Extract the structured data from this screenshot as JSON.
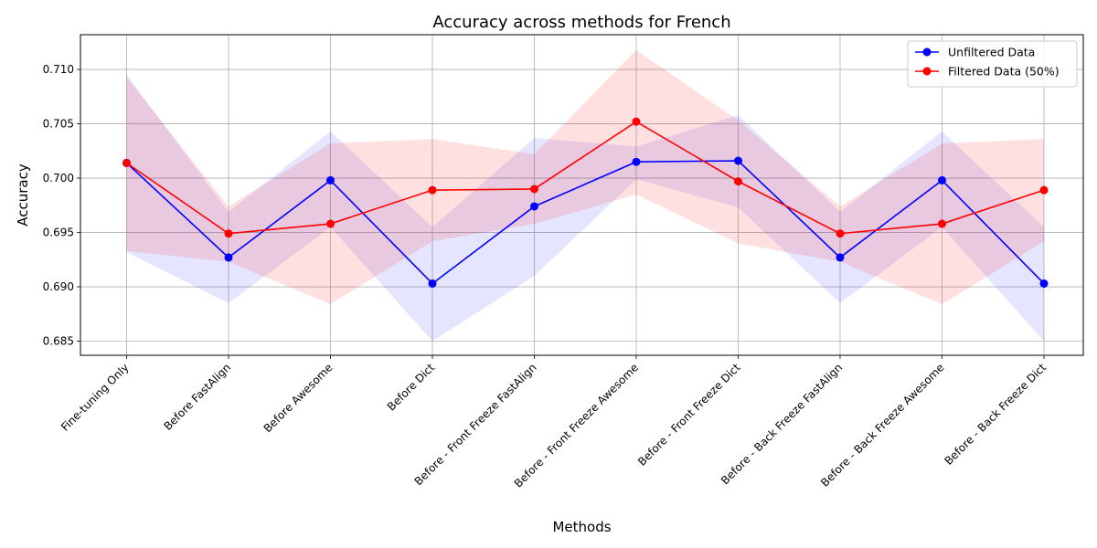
{
  "chart_data": {
    "type": "line",
    "title": "Accuracy across methods for French",
    "xlabel": "Methods",
    "ylabel": "Accuracy",
    "categories": [
      "Fine-tuning Only",
      "Before FastAlign",
      "Before Awesome",
      "Before Dict",
      "Before - Front Freeze FastAlign",
      "Before - Front Freeze Awesome",
      "Before - Front Freeze Dict",
      "Before - Back Freeze FastAlign",
      "Before - Back Freeze Awesome",
      "Before - Back Freeze Dict"
    ],
    "ylim": [
      0.6837,
      0.7132
    ],
    "yticks": [
      "0.685",
      "0.690",
      "0.695",
      "0.700",
      "0.705",
      "0.710"
    ],
    "grid": true,
    "legend_position": "top-right",
    "series": [
      {
        "name": "Unfiltered Data",
        "color": "#0000ff",
        "values": [
          0.7014,
          0.6927,
          0.6998,
          0.6903,
          0.6974,
          0.7015,
          0.7016,
          0.6927,
          0.6998,
          0.6903
        ],
        "lower": [
          0.6932,
          0.6885,
          0.6955,
          0.685,
          0.691,
          0.6999,
          0.6973,
          0.6885,
          0.6955,
          0.685
        ],
        "upper": [
          0.7095,
          0.6969,
          0.7043,
          0.6955,
          0.7037,
          0.7029,
          0.7058,
          0.6969,
          0.7043,
          0.6955
        ]
      },
      {
        "name": "Filtered Data (50%)",
        "color": "#ff0000",
        "values": [
          0.7014,
          0.6949,
          0.6958,
          0.6989,
          0.699,
          0.7052,
          0.6997,
          0.6949,
          0.6958,
          0.6989
        ],
        "lower": [
          0.6933,
          0.6923,
          0.6884,
          0.6942,
          0.6958,
          0.6985,
          0.694,
          0.6923,
          0.6884,
          0.6942
        ],
        "upper": [
          0.7093,
          0.6974,
          0.7032,
          0.7036,
          0.7022,
          0.7118,
          0.7053,
          0.6974,
          0.7032,
          0.7036
        ]
      }
    ]
  }
}
